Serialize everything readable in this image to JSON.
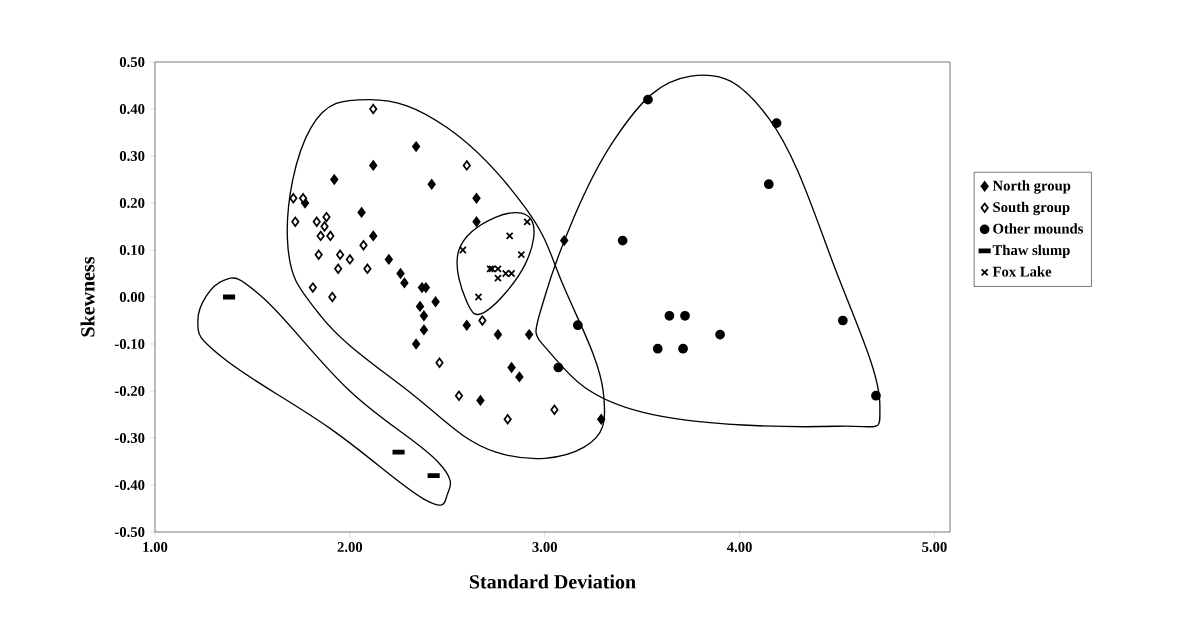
{
  "chart_data": {
    "type": "scatter",
    "xlabel": "Standard Deviation",
    "ylabel": "Skewness",
    "xlim": [
      1,
      5.08
    ],
    "ylim": [
      -0.5,
      0.5
    ],
    "xticks": [
      {
        "value": 1,
        "label": "1.00"
      },
      {
        "value": 2,
        "label": "2.00"
      },
      {
        "value": 3,
        "label": "3.00"
      },
      {
        "value": 4,
        "label": "4.00"
      },
      {
        "value": 5,
        "label": "5.00"
      }
    ],
    "yticks": [
      {
        "value": -0.5,
        "label": "-0.50"
      },
      {
        "value": -0.4,
        "label": "-0.40"
      },
      {
        "value": -0.3,
        "label": "-0.30"
      },
      {
        "value": -0.2,
        "label": "-0.20"
      },
      {
        "value": -0.1,
        "label": "-0.10"
      },
      {
        "value": 0,
        "label": "0.00"
      },
      {
        "value": 0.1,
        "label": "0.10"
      },
      {
        "value": 0.2,
        "label": "0.20"
      },
      {
        "value": 0.3,
        "label": "0.30"
      },
      {
        "value": 0.4,
        "label": "0.40"
      },
      {
        "value": 0.5,
        "label": "0.50"
      }
    ],
    "legend": "right",
    "grid": false,
    "series": [
      {
        "name": "North group",
        "color": "#000000",
        "marker": "diamond",
        "x": [
          2.34,
          2.12,
          1.92,
          2.42,
          1.77,
          2.65,
          2.06,
          2.65,
          2.12,
          2.2,
          2.26,
          2.28,
          2.37,
          2.39,
          2.44,
          2.36,
          2.38,
          2.38,
          2.34,
          2.6,
          3.1,
          2.76,
          2.92,
          2.83,
          2.87,
          2.67,
          3.29
        ],
        "values": [
          0.32,
          0.28,
          0.25,
          0.24,
          0.2,
          0.21,
          0.18,
          0.16,
          0.13,
          0.08,
          0.05,
          0.03,
          0.02,
          0.02,
          -0.01,
          -0.02,
          -0.04,
          -0.07,
          -0.1,
          -0.06,
          0.12,
          -0.08,
          -0.08,
          -0.15,
          -0.17,
          -0.22,
          -0.26
        ]
      },
      {
        "name": "South group",
        "color": "#ffffff",
        "marker": "diamond",
        "x": [
          2.12,
          2.6,
          1.71,
          1.76,
          1.72,
          1.88,
          1.83,
          1.87,
          1.85,
          1.9,
          2.07,
          1.84,
          1.95,
          2.0,
          1.94,
          2.09,
          1.81,
          1.91,
          2.68,
          2.56,
          2.81,
          3.05,
          2.46
        ],
        "values": [
          0.4,
          0.28,
          0.21,
          0.21,
          0.16,
          0.17,
          0.16,
          0.15,
          0.13,
          0.13,
          0.11,
          0.09,
          0.09,
          0.08,
          0.06,
          0.06,
          0.02,
          0.0,
          -0.05,
          -0.21,
          -0.26,
          -0.24,
          -0.14
        ]
      },
      {
        "name": "Other mounds",
        "color": "#000000",
        "marker": "circle",
        "x": [
          3.53,
          3.4,
          3.64,
          3.72,
          3.17,
          3.07,
          3.58,
          3.71,
          4.19,
          4.15,
          4.53,
          3.9,
          4.7
        ],
        "values": [
          0.42,
          0.12,
          -0.04,
          -0.04,
          -0.06,
          -0.15,
          -0.11,
          -0.11,
          0.37,
          0.24,
          -0.05,
          -0.08,
          -0.21
        ]
      },
      {
        "name": "Thaw slump",
        "color": "#000000",
        "marker": "square",
        "x": [
          1.38,
          2.25,
          2.43
        ],
        "values": [
          0.0,
          -0.33,
          -0.38
        ]
      },
      {
        "name": "Fox Lake",
        "color": "#000000",
        "marker": "cross",
        "x": [
          2.91,
          2.82,
          2.58,
          2.88,
          2.73,
          2.76,
          2.8,
          2.83,
          2.76,
          2.72,
          2.66
        ],
        "values": [
          0.16,
          0.13,
          0.1,
          0.09,
          0.06,
          0.06,
          0.05,
          0.05,
          0.04,
          0.06,
          0.0
        ]
      }
    ]
  }
}
